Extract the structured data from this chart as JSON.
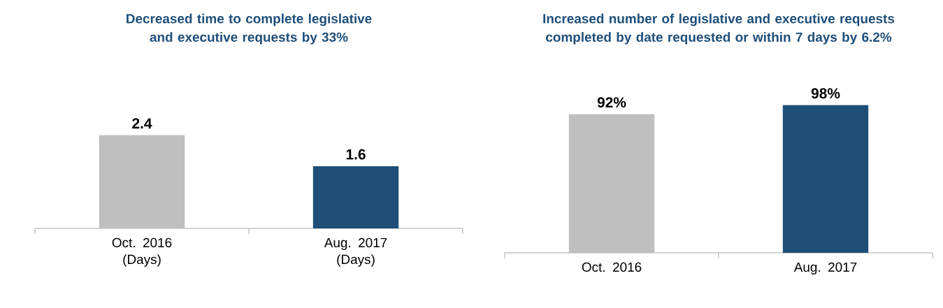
{
  "chart_data": [
    {
      "type": "bar",
      "title": "Decreased time to complete legislative and executive requests by 33%",
      "categories": [
        "Oct. 2016 (Days)",
        "Aug. 2017 (Days)"
      ],
      "values": [
        2.4,
        1.6
      ],
      "colors": [
        "#bfbfbf",
        "#1f4e79"
      ],
      "value_labels": [
        "2.4",
        "1.6"
      ],
      "tick_labels": "x"
    },
    {
      "type": "bar",
      "title": "Increased number of legislative and executive requests completed by date requested or within 7 days by 6.2%",
      "categories": [
        "Oct. 2016",
        "Aug. 2017"
      ],
      "values": [
        92,
        98
      ],
      "colors": [
        "#bfbfbf",
        "#1f4e79"
      ],
      "value_labels": [
        "92%",
        "98%"
      ],
      "tick_labels": "x"
    }
  ]
}
